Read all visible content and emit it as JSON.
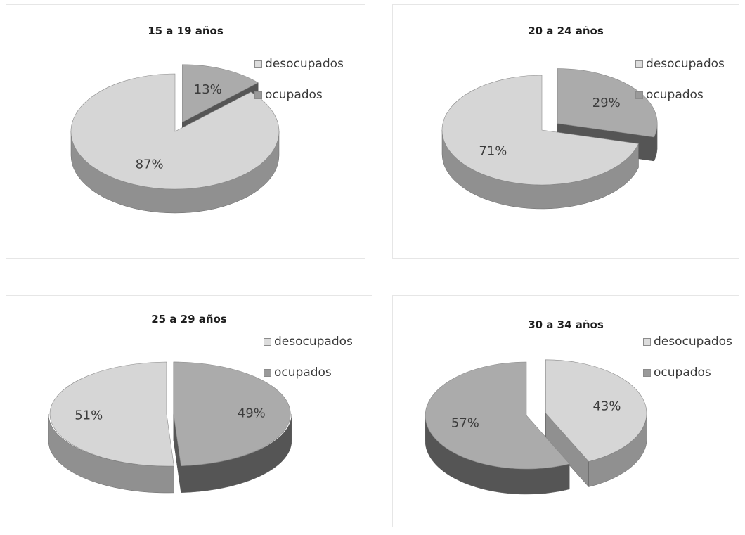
{
  "colors": {
    "desocupados_top": "#d6d6d6",
    "desocupados_side": "#909090",
    "ocupados_top": "#ababab",
    "ocupados_side": "#555555",
    "desocupados_swatch": "#dcdcdc",
    "ocupados_swatch": "#9a9a9a"
  },
  "legend": {
    "desocupados": "desocupados",
    "ocupados": "ocupados"
  },
  "chart_data": [
    {
      "type": "pie",
      "title": "15 a 19 años",
      "slices": [
        {
          "name": "ocupados",
          "value": 13,
          "label": "13%"
        },
        {
          "name": "desocupados",
          "value": 87,
          "label": "87%"
        }
      ]
    },
    {
      "type": "pie",
      "title": "20 a 24 años",
      "slices": [
        {
          "name": "ocupados",
          "value": 29,
          "label": "29%"
        },
        {
          "name": "desocupados",
          "value": 71,
          "label": "71%"
        }
      ]
    },
    {
      "type": "pie",
      "title": "25 a 29 años",
      "slices": [
        {
          "name": "ocupados",
          "value": 49,
          "label": "49%"
        },
        {
          "name": "desocupados",
          "value": 51,
          "label": "51%"
        }
      ]
    },
    {
      "type": "pie",
      "title": "30 a 34 años",
      "slices": [
        {
          "name": "desocupados",
          "value": 43,
          "label": "43%"
        },
        {
          "name": "ocupados",
          "value": 57,
          "label": "57%"
        }
      ]
    }
  ]
}
